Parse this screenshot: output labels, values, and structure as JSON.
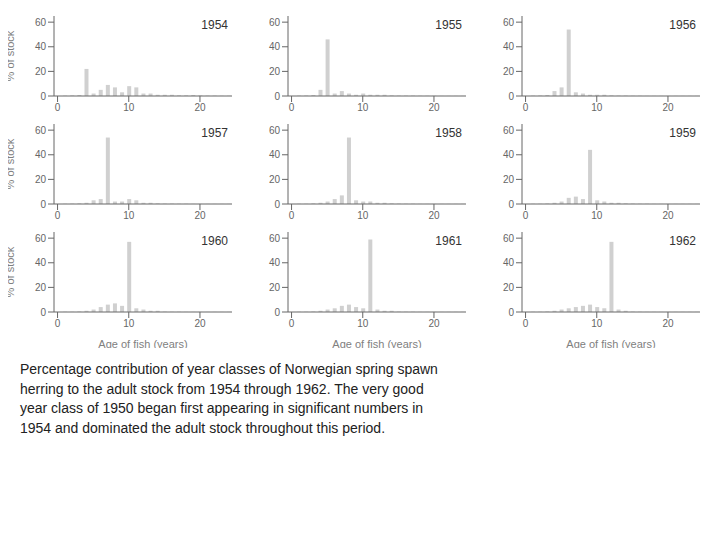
{
  "caption": "Percentage contribution of year classes of Norwegian spring spawn\nherring to the adult stock from 1954 through 1962.  The very good\nyear class of 1950 began first appearing in significant numbers in\n1954 and dominated the adult stock throughout this period.",
  "chart_data": [
    {
      "type": "bar",
      "annotations": [
        "1954"
      ],
      "ylabel": "% of stock",
      "color": "#d0d0d0",
      "xlim": [
        -0.5,
        24.5
      ],
      "xticks": [
        0,
        10,
        20
      ],
      "ylim": [
        0,
        65
      ],
      "yticks": [
        0,
        20,
        40,
        60
      ],
      "x": [
        1,
        2,
        3,
        4,
        5,
        6,
        7,
        8,
        9,
        10,
        11,
        12,
        13,
        14,
        15,
        16,
        17,
        18,
        19,
        20,
        21,
        22,
        23,
        24
      ],
      "values": [
        0.3,
        0.5,
        0.8,
        22,
        2,
        5,
        9,
        7,
        3,
        8,
        7,
        2,
        2,
        1,
        1,
        1,
        0.5,
        0.5,
        0.8,
        0.5,
        0.3,
        0.3,
        0.2,
        0.2
      ]
    },
    {
      "type": "bar",
      "annotations": [
        "1955"
      ],
      "color": "#d0d0d0",
      "xlim": [
        -0.5,
        24.5
      ],
      "xticks": [
        0,
        10,
        20
      ],
      "ylim": [
        0,
        65
      ],
      "yticks": [
        0,
        20,
        40,
        60
      ],
      "x": [
        1,
        2,
        3,
        4,
        5,
        6,
        7,
        8,
        9,
        10,
        11,
        12,
        13,
        14,
        15,
        16,
        17,
        18,
        19,
        20,
        21,
        22,
        23,
        24
      ],
      "values": [
        0.3,
        0.5,
        0.8,
        5,
        46,
        2,
        4,
        2,
        1,
        2,
        1,
        1,
        1,
        0.5,
        0.3,
        0.3,
        0.3,
        0.2,
        0.2,
        0.2,
        0.1,
        0.1,
        0.1,
        0.1
      ]
    },
    {
      "type": "bar",
      "annotations": [
        "1956"
      ],
      "color": "#d0d0d0",
      "xlim": [
        -0.5,
        24.5
      ],
      "xticks": [
        0,
        10,
        20
      ],
      "ylim": [
        0,
        65
      ],
      "yticks": [
        0,
        20,
        40,
        60
      ],
      "x": [
        1,
        2,
        3,
        4,
        5,
        6,
        7,
        8,
        9,
        10,
        11,
        12,
        13,
        14,
        15,
        16,
        17,
        18,
        19,
        20,
        21,
        22,
        23,
        24
      ],
      "values": [
        0.3,
        0.5,
        0.8,
        4,
        7,
        54,
        3,
        2,
        1,
        1,
        1,
        0.5,
        0.3,
        0.3,
        0.2,
        0.2,
        0.1,
        0.1,
        0.1,
        0.1,
        0.1,
        0.1,
        0.1,
        0.1
      ]
    },
    {
      "type": "bar",
      "annotations": [
        "1957"
      ],
      "ylabel": "% of stock",
      "color": "#d0d0d0",
      "xlim": [
        -0.5,
        24.5
      ],
      "xticks": [
        0,
        10,
        20
      ],
      "ylim": [
        0,
        65
      ],
      "yticks": [
        0,
        20,
        40,
        60
      ],
      "x": [
        1,
        2,
        3,
        4,
        5,
        6,
        7,
        8,
        9,
        10,
        11,
        12,
        13,
        14,
        15,
        16,
        17,
        18,
        19,
        20,
        21,
        22,
        23,
        24
      ],
      "values": [
        0.2,
        0.3,
        0.5,
        1,
        3,
        4,
        54,
        2,
        2,
        4,
        3,
        1,
        1,
        0.5,
        0.3,
        0.3,
        0.2,
        0.2,
        0.1,
        0.1,
        0.1,
        0.1,
        0.1,
        0.1
      ]
    },
    {
      "type": "bar",
      "annotations": [
        "1958"
      ],
      "color": "#d0d0d0",
      "xlim": [
        -0.5,
        24.5
      ],
      "xticks": [
        0,
        10,
        20
      ],
      "ylim": [
        0,
        65
      ],
      "yticks": [
        0,
        20,
        40,
        60
      ],
      "x": [
        1,
        2,
        3,
        4,
        5,
        6,
        7,
        8,
        9,
        10,
        11,
        12,
        13,
        14,
        15,
        16,
        17,
        18,
        19,
        20,
        21,
        22,
        23,
        24
      ],
      "values": [
        0.2,
        0.3,
        0.5,
        1,
        2,
        4,
        7,
        54,
        3,
        2,
        2,
        1,
        1,
        0.5,
        0.3,
        0.2,
        0.2,
        0.1,
        0.1,
        0.1,
        0.1,
        0.1,
        0.1,
        0.1
      ]
    },
    {
      "type": "bar",
      "annotations": [
        "1959"
      ],
      "color": "#d0d0d0",
      "xlim": [
        -0.5,
        24.5
      ],
      "xticks": [
        0,
        10,
        20
      ],
      "ylim": [
        0,
        65
      ],
      "yticks": [
        0,
        20,
        40,
        60
      ],
      "x": [
        1,
        2,
        3,
        4,
        5,
        6,
        7,
        8,
        9,
        10,
        11,
        12,
        13,
        14,
        15,
        16,
        17,
        18,
        19,
        20,
        21,
        22,
        23,
        24
      ],
      "values": [
        0.2,
        0.2,
        0.4,
        1,
        2,
        5,
        6,
        4,
        44,
        3,
        2,
        1,
        1,
        0.5,
        0.3,
        0.2,
        0.2,
        0.1,
        0.1,
        0.1,
        0.1,
        0.1,
        0.1,
        0.1
      ]
    },
    {
      "type": "bar",
      "annotations": [
        "1960"
      ],
      "ylabel": "% of stock",
      "xlabel": "Age of fish (years)",
      "color": "#d0d0d0",
      "xlim": [
        -0.5,
        24.5
      ],
      "xticks": [
        0,
        10,
        20
      ],
      "ylim": [
        0,
        65
      ],
      "yticks": [
        0,
        20,
        40,
        60
      ],
      "x": [
        1,
        2,
        3,
        4,
        5,
        6,
        7,
        8,
        9,
        10,
        11,
        12,
        13,
        14,
        15,
        16,
        17,
        18,
        19,
        20,
        21,
        22,
        23,
        24
      ],
      "values": [
        0.2,
        0.2,
        0.4,
        1,
        2,
        4,
        6,
        7,
        5,
        57,
        3,
        2,
        1,
        1,
        0.3,
        0.2,
        0.2,
        0.1,
        0.1,
        0.1,
        0.1,
        0.1,
        0.1,
        0.1
      ]
    },
    {
      "type": "bar",
      "annotations": [
        "1961"
      ],
      "xlabel": "Age of fish (years)",
      "color": "#d0d0d0",
      "xlim": [
        -0.5,
        24.5
      ],
      "xticks": [
        0,
        10,
        20
      ],
      "ylim": [
        0,
        65
      ],
      "yticks": [
        0,
        20,
        40,
        60
      ],
      "x": [
        1,
        2,
        3,
        4,
        5,
        6,
        7,
        8,
        9,
        10,
        11,
        12,
        13,
        14,
        15,
        16,
        17,
        18,
        19,
        20,
        21,
        22,
        23,
        24
      ],
      "values": [
        0.2,
        0.2,
        0.4,
        1,
        2,
        3,
        5,
        6,
        4,
        3,
        59,
        2,
        1,
        1,
        0.3,
        0.2,
        0.2,
        0.1,
        0.1,
        0.1,
        0.1,
        0.1,
        0.1,
        0.1
      ]
    },
    {
      "type": "bar",
      "annotations": [
        "1962"
      ],
      "xlabel": "Age of fish (years)",
      "color": "#d0d0d0",
      "xlim": [
        -0.5,
        24.5
      ],
      "xticks": [
        0,
        10,
        20
      ],
      "ylim": [
        0,
        65
      ],
      "yticks": [
        0,
        20,
        40,
        60
      ],
      "x": [
        1,
        2,
        3,
        4,
        5,
        6,
        7,
        8,
        9,
        10,
        11,
        12,
        13,
        14,
        15,
        16,
        17,
        18,
        19,
        20,
        21,
        22,
        23,
        24
      ],
      "values": [
        0.2,
        0.2,
        0.4,
        1,
        2,
        3,
        4,
        5,
        6,
        4,
        3,
        57,
        2,
        1,
        0.3,
        0.2,
        0.1,
        0.1,
        0.1,
        0.1,
        0.1,
        0.1,
        0.1,
        0.1
      ]
    }
  ]
}
